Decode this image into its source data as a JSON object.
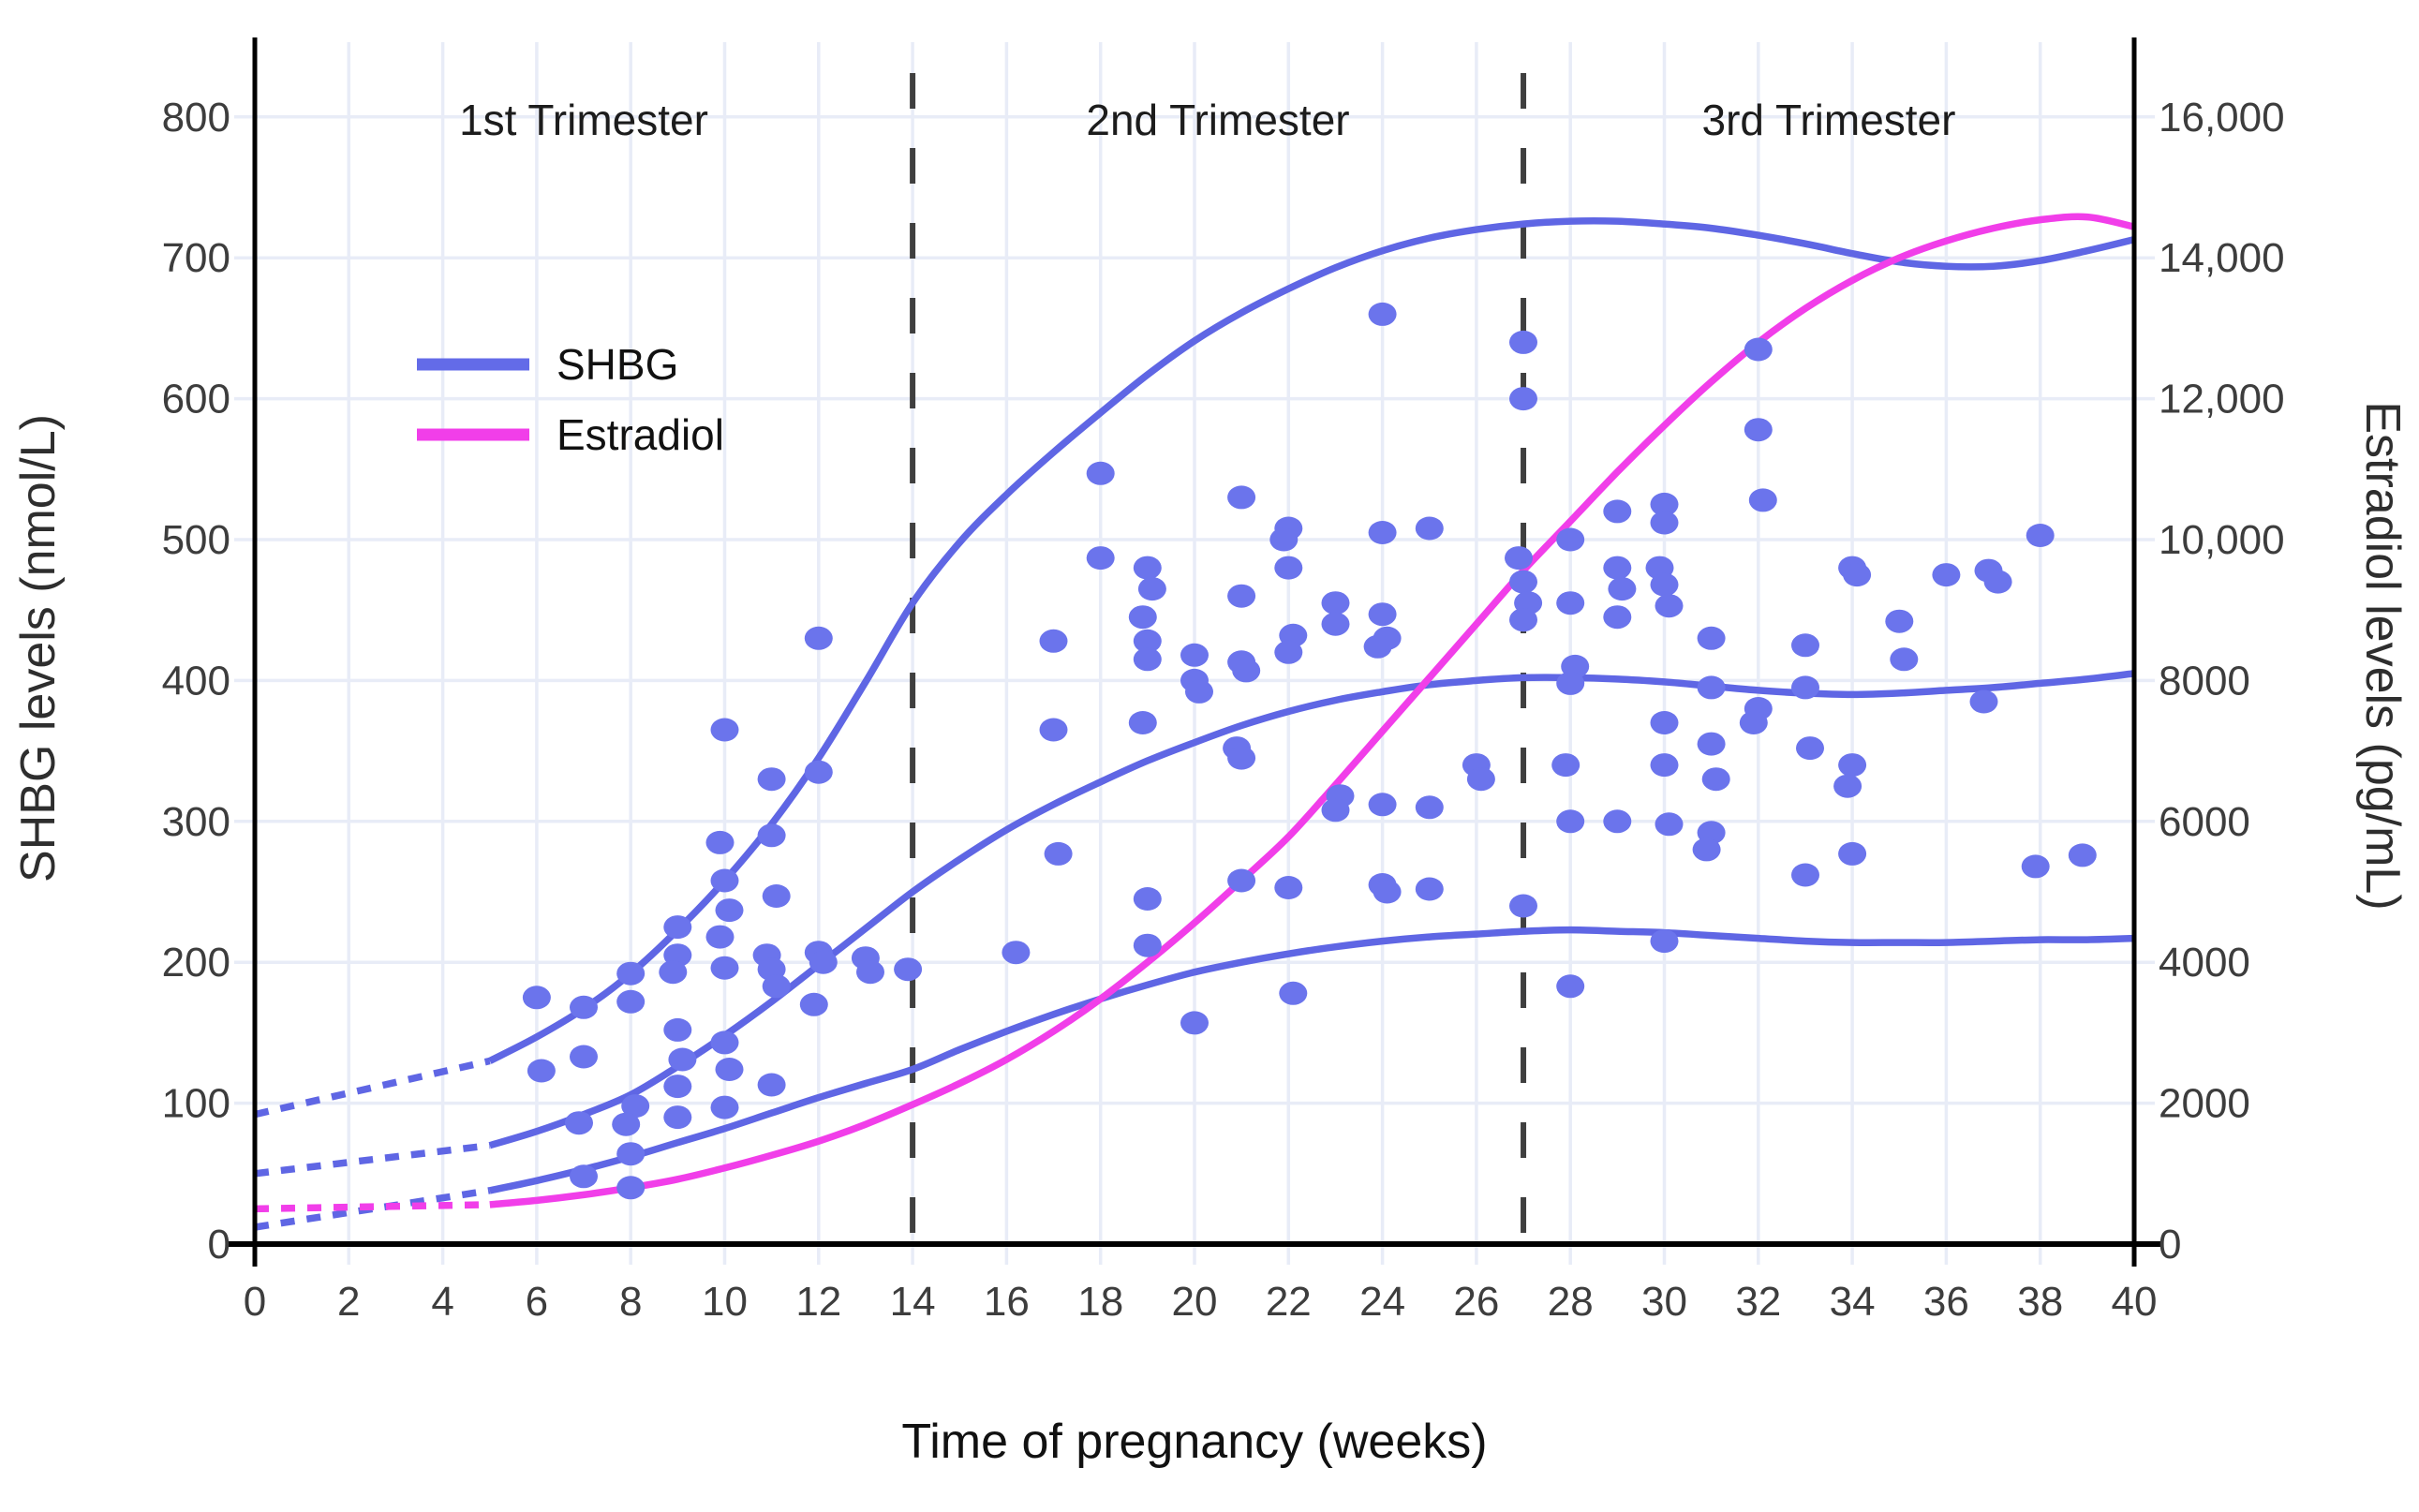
{
  "figure": {
    "background_color": "#ffffff",
    "x_axis_title": "Time of pregnancy (weeks)",
    "y_axis_left_title": "SHBG levels (nmol/L)",
    "y_axis_right_title": "Estradiol levels (pg/mL)"
  },
  "legend": {
    "position": "upper-left inside plot",
    "items": [
      {
        "label": "SHBG",
        "color": "#636be8"
      },
      {
        "label": "Estradiol",
        "color": "#f13ee9"
      }
    ]
  },
  "colors": {
    "shbg_line": "#5f66e4",
    "shbg_dot": "#6b74ec",
    "estradiol_line": "#f13ee9",
    "grid": "#e8ecf7",
    "axis": "#000000",
    "divider_dash": "#3f3f3f",
    "tick_text": "#3d3d3d",
    "title_text": "#111111"
  },
  "chart_data": {
    "type": "scatter",
    "subtype": "scatter with reference curves, dual y-axes",
    "x": {
      "label": "Time of pregnancy (weeks)",
      "min": 0,
      "max": 40,
      "ticks": [
        0,
        2,
        4,
        6,
        8,
        10,
        12,
        14,
        16,
        18,
        20,
        22,
        24,
        26,
        28,
        30,
        32,
        34,
        36,
        38,
        40
      ],
      "grid": true
    },
    "y_left": {
      "label": "SHBG levels (nmol/L)",
      "min": 0,
      "max": 850,
      "ticks": [
        0,
        100,
        200,
        300,
        400,
        500,
        600,
        700,
        800
      ],
      "grid": true
    },
    "y_right": {
      "label": "Estradiol levels (pg/mL)",
      "min": 0,
      "max": 17000,
      "ticks": [
        0,
        2000,
        4000,
        6000,
        8000,
        10000,
        12000,
        14000,
        16000
      ],
      "tick_labels": [
        "0",
        "2000",
        "4000",
        "6000",
        "8000",
        "10,000",
        "12,000",
        "14,000",
        "16,000"
      ]
    },
    "annotations": {
      "trimesters": [
        {
          "label": "1st Trimester",
          "from_week": 0,
          "to_week": 14
        },
        {
          "label": "2nd Trimester",
          "from_week": 14,
          "to_week": 27
        },
        {
          "label": "3rd Trimester",
          "from_week": 27,
          "to_week": 40
        }
      ],
      "divider_weeks": [
        14,
        27
      ]
    },
    "series": [
      {
        "name": "SHBG upper curve (dotted extrapolation 0-5 wk)",
        "axis": "left",
        "style": "dotted",
        "color": "#5f66e4",
        "points": [
          [
            0,
            92
          ],
          [
            5,
            130
          ]
        ]
      },
      {
        "name": "SHBG middle curve (dotted extrapolation 0-5 wk)",
        "axis": "left",
        "style": "dotted",
        "color": "#5f66e4",
        "points": [
          [
            0,
            50
          ],
          [
            5,
            70
          ]
        ]
      },
      {
        "name": "SHBG lower curve (dotted extrapolation 0-5 wk)",
        "axis": "left",
        "style": "dotted",
        "color": "#5f66e4",
        "points": [
          [
            0,
            12
          ],
          [
            5,
            38
          ]
        ]
      },
      {
        "name": "Estradiol curve (dotted extrapolation 0-5 wk)",
        "axis": "right",
        "style": "dotted",
        "color": "#f13ee9",
        "points": [
          [
            0,
            500
          ],
          [
            5,
            560
          ]
        ]
      },
      {
        "name": "SHBG upper curve",
        "axis": "left",
        "style": "solid",
        "color": "#5f66e4",
        "points": [
          [
            5,
            130
          ],
          [
            6,
            147
          ],
          [
            7,
            167
          ],
          [
            8,
            192
          ],
          [
            9,
            223
          ],
          [
            10,
            258
          ],
          [
            11,
            298
          ],
          [
            12,
            345
          ],
          [
            13,
            399
          ],
          [
            14,
            455
          ],
          [
            15,
            498
          ],
          [
            16,
            532
          ],
          [
            17,
            562
          ],
          [
            18,
            590
          ],
          [
            19,
            617
          ],
          [
            20,
            641
          ],
          [
            21,
            661
          ],
          [
            22,
            678
          ],
          [
            23,
            693
          ],
          [
            24,
            705
          ],
          [
            25,
            714
          ],
          [
            26,
            720
          ],
          [
            27,
            724
          ],
          [
            28,
            726
          ],
          [
            29,
            726
          ],
          [
            30,
            724
          ],
          [
            31,
            721
          ],
          [
            32,
            716
          ],
          [
            33,
            710
          ],
          [
            34,
            703
          ],
          [
            35,
            697
          ],
          [
            36,
            694
          ],
          [
            37,
            694
          ],
          [
            38,
            698
          ],
          [
            39,
            705
          ],
          [
            40,
            713
          ]
        ]
      },
      {
        "name": "SHBG middle curve",
        "axis": "left",
        "style": "solid",
        "color": "#5f66e4",
        "points": [
          [
            5,
            70
          ],
          [
            6,
            80
          ],
          [
            7,
            92
          ],
          [
            8,
            106
          ],
          [
            9,
            126
          ],
          [
            10,
            148
          ],
          [
            11,
            172
          ],
          [
            12,
            198
          ],
          [
            13,
            224
          ],
          [
            14,
            250
          ],
          [
            15,
            273
          ],
          [
            16,
            294
          ],
          [
            17,
            312
          ],
          [
            18,
            328
          ],
          [
            19,
            343
          ],
          [
            20,
            356
          ],
          [
            21,
            368
          ],
          [
            22,
            378
          ],
          [
            23,
            386
          ],
          [
            24,
            392
          ],
          [
            25,
            397
          ],
          [
            26,
            400
          ],
          [
            27,
            402
          ],
          [
            28,
            402
          ],
          [
            29,
            401
          ],
          [
            30,
            399
          ],
          [
            31,
            396
          ],
          [
            32,
            393
          ],
          [
            33,
            391
          ],
          [
            34,
            390
          ],
          [
            35,
            391
          ],
          [
            36,
            393
          ],
          [
            37,
            395
          ],
          [
            38,
            398
          ],
          [
            39,
            401
          ],
          [
            40,
            405
          ]
        ]
      },
      {
        "name": "SHBG lower curve",
        "axis": "left",
        "style": "solid",
        "color": "#5f66e4",
        "points": [
          [
            5,
            38
          ],
          [
            6,
            45
          ],
          [
            7,
            53
          ],
          [
            8,
            62
          ],
          [
            9,
            72
          ],
          [
            10,
            82
          ],
          [
            11,
            93
          ],
          [
            12,
            104
          ],
          [
            13,
            114
          ],
          [
            14,
            124
          ],
          [
            15,
            138
          ],
          [
            16,
            151
          ],
          [
            17,
            163
          ],
          [
            18,
            174
          ],
          [
            19,
            184
          ],
          [
            20,
            193
          ],
          [
            21,
            200
          ],
          [
            22,
            206
          ],
          [
            23,
            211
          ],
          [
            24,
            215
          ],
          [
            25,
            218
          ],
          [
            26,
            220
          ],
          [
            27,
            222
          ],
          [
            28,
            223
          ],
          [
            29,
            222
          ],
          [
            30,
            221
          ],
          [
            31,
            219
          ],
          [
            32,
            217
          ],
          [
            33,
            215
          ],
          [
            34,
            214
          ],
          [
            35,
            214
          ],
          [
            36,
            214
          ],
          [
            37,
            215
          ],
          [
            38,
            216
          ],
          [
            39,
            216
          ],
          [
            40,
            217
          ]
        ]
      },
      {
        "name": "Estradiol curve",
        "axis": "right",
        "style": "solid",
        "color": "#f13ee9",
        "points": [
          [
            5,
            560
          ],
          [
            6,
            620
          ],
          [
            7,
            700
          ],
          [
            8,
            800
          ],
          [
            9,
            920
          ],
          [
            10,
            1080
          ],
          [
            11,
            1260
          ],
          [
            12,
            1460
          ],
          [
            13,
            1700
          ],
          [
            14,
            1980
          ],
          [
            15,
            2280
          ],
          [
            16,
            2620
          ],
          [
            17,
            3020
          ],
          [
            18,
            3480
          ],
          [
            19,
            4000
          ],
          [
            20,
            4560
          ],
          [
            21,
            5160
          ],
          [
            22,
            5780
          ],
          [
            23,
            6520
          ],
          [
            24,
            7280
          ],
          [
            25,
            8040
          ],
          [
            26,
            8800
          ],
          [
            27,
            9560
          ],
          [
            28,
            10260
          ],
          [
            29,
            10960
          ],
          [
            30,
            11620
          ],
          [
            31,
            12240
          ],
          [
            32,
            12800
          ],
          [
            33,
            13280
          ],
          [
            34,
            13680
          ],
          [
            35,
            14000
          ],
          [
            36,
            14240
          ],
          [
            37,
            14420
          ],
          [
            38,
            14540
          ],
          [
            39,
            14580
          ],
          [
            40,
            14440
          ]
        ]
      }
    ],
    "scatter": {
      "name": "SHBG individual measurements",
      "axis": "left",
      "color": "#6b74ec",
      "points": [
        [
          6,
          175
        ],
        [
          6.1,
          123
        ],
        [
          7,
          168
        ],
        [
          7,
          133
        ],
        [
          6.9,
          86
        ],
        [
          7,
          48
        ],
        [
          8,
          192
        ],
        [
          8,
          172
        ],
        [
          8.1,
          98
        ],
        [
          7.9,
          85
        ],
        [
          8,
          64
        ],
        [
          8,
          40
        ],
        [
          9,
          225
        ],
        [
          9,
          205
        ],
        [
          8.9,
          193
        ],
        [
          9,
          152
        ],
        [
          9.1,
          131
        ],
        [
          9,
          112
        ],
        [
          9,
          90
        ],
        [
          10,
          365
        ],
        [
          9.9,
          285
        ],
        [
          10,
          258
        ],
        [
          10.1,
          237
        ],
        [
          9.9,
          218
        ],
        [
          10,
          196
        ],
        [
          10,
          143
        ],
        [
          10.1,
          124
        ],
        [
          10,
          97
        ],
        [
          11,
          330
        ],
        [
          11,
          290
        ],
        [
          11.1,
          247
        ],
        [
          10.9,
          205
        ],
        [
          11,
          195
        ],
        [
          11.1,
          183
        ],
        [
          11,
          113
        ],
        [
          12,
          430
        ],
        [
          12,
          335
        ],
        [
          12,
          207
        ],
        [
          12.1,
          200
        ],
        [
          11.9,
          170
        ],
        [
          13,
          203
        ],
        [
          13.1,
          193
        ],
        [
          13.9,
          195
        ],
        [
          16.2,
          207
        ],
        [
          17,
          428
        ],
        [
          17,
          365
        ],
        [
          17.1,
          277
        ],
        [
          18,
          547
        ],
        [
          18,
          487
        ],
        [
          19,
          480
        ],
        [
          19.1,
          465
        ],
        [
          18.9,
          445
        ],
        [
          19,
          428
        ],
        [
          19,
          415
        ],
        [
          18.9,
          370
        ],
        [
          19,
          245
        ],
        [
          19,
          212
        ],
        [
          20,
          418
        ],
        [
          20,
          400
        ],
        [
          20.1,
          392
        ],
        [
          20,
          157
        ],
        [
          21,
          530
        ],
        [
          21,
          460
        ],
        [
          21,
          413
        ],
        [
          21.1,
          407
        ],
        [
          20.9,
          352
        ],
        [
          21,
          345
        ],
        [
          21,
          258
        ],
        [
          22,
          508
        ],
        [
          21.9,
          500
        ],
        [
          22,
          480
        ],
        [
          22.1,
          432
        ],
        [
          22,
          420
        ],
        [
          22,
          253
        ],
        [
          22.1,
          178
        ],
        [
          23,
          455
        ],
        [
          23,
          440
        ],
        [
          23.1,
          318
        ],
        [
          23,
          308
        ],
        [
          24,
          660
        ],
        [
          24,
          505
        ],
        [
          24,
          447
        ],
        [
          24.1,
          430
        ],
        [
          23.9,
          424
        ],
        [
          24,
          312
        ],
        [
          24,
          255
        ],
        [
          24.1,
          250
        ],
        [
          25,
          508
        ],
        [
          25,
          310
        ],
        [
          25,
          252
        ],
        [
          26,
          340
        ],
        [
          26.1,
          330
        ],
        [
          27,
          640
        ],
        [
          27,
          600
        ],
        [
          26.9,
          487
        ],
        [
          27,
          470
        ],
        [
          27.1,
          455
        ],
        [
          27,
          443
        ],
        [
          27,
          240
        ],
        [
          28,
          500
        ],
        [
          28,
          455
        ],
        [
          28.1,
          410
        ],
        [
          28,
          398
        ],
        [
          27.9,
          340
        ],
        [
          28,
          300
        ],
        [
          28,
          183
        ],
        [
          29,
          520
        ],
        [
          29,
          480
        ],
        [
          29.1,
          465
        ],
        [
          29,
          445
        ],
        [
          29,
          300
        ],
        [
          30,
          525
        ],
        [
          30,
          512
        ],
        [
          29.9,
          480
        ],
        [
          30,
          468
        ],
        [
          30.1,
          453
        ],
        [
          30,
          370
        ],
        [
          30,
          340
        ],
        [
          30.1,
          298
        ],
        [
          30,
          215
        ],
        [
          31,
          430
        ],
        [
          31,
          395
        ],
        [
          31,
          355
        ],
        [
          31.1,
          330
        ],
        [
          31,
          292
        ],
        [
          30.9,
          280
        ],
        [
          32,
          635
        ],
        [
          32,
          578
        ],
        [
          32.1,
          528
        ],
        [
          32,
          380
        ],
        [
          31.9,
          370
        ],
        [
          33,
          425
        ],
        [
          33,
          395
        ],
        [
          33.1,
          352
        ],
        [
          33,
          262
        ],
        [
          34,
          480
        ],
        [
          34.1,
          475
        ],
        [
          34,
          340
        ],
        [
          33.9,
          325
        ],
        [
          34,
          277
        ],
        [
          35,
          442
        ],
        [
          35.1,
          415
        ],
        [
          36,
          475
        ],
        [
          36.9,
          478
        ],
        [
          37.1,
          470
        ],
        [
          36.8,
          385
        ],
        [
          38,
          503
        ],
        [
          37.9,
          268
        ],
        [
          38.9,
          276
        ]
      ]
    }
  }
}
